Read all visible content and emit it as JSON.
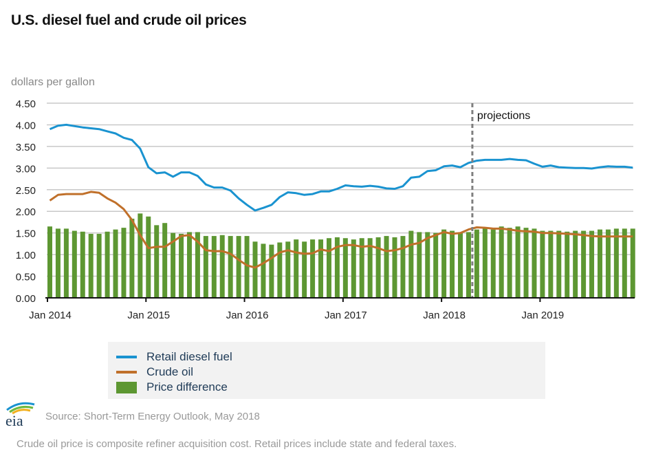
{
  "title": "U.S. diesel fuel and crude oil prices",
  "units_label": "dollars per gallon",
  "chart_data": {
    "type": "line+bar",
    "title": "U.S. diesel fuel and crude oil prices",
    "ylabel": "dollars per gallon",
    "ylim": [
      0,
      4.5
    ],
    "yticks": [
      "0.00",
      "0.50",
      "1.00",
      "1.50",
      "2.00",
      "2.50",
      "3.00",
      "3.50",
      "4.00",
      "4.50"
    ],
    "x_start": "Jan 2014",
    "x_end": "Dec 2019",
    "xtick_labels": [
      "Jan 2014",
      "Jan 2015",
      "Jan 2016",
      "Jan 2017",
      "Jan 2018",
      "Jan 2019"
    ],
    "projections_start_month_index": 51.5,
    "projections_label": "projections",
    "grid": true,
    "legend_placement": "bottom",
    "series": [
      {
        "name": "Retail diesel fuel",
        "kind": "line",
        "color": "#1a93d0",
        "values": [
          3.9,
          3.98,
          4.0,
          3.97,
          3.94,
          3.92,
          3.9,
          3.85,
          3.8,
          3.7,
          3.65,
          3.45,
          3.02,
          2.88,
          2.9,
          2.8,
          2.9,
          2.9,
          2.82,
          2.62,
          2.55,
          2.55,
          2.48,
          2.3,
          2.15,
          2.02,
          2.08,
          2.15,
          2.33,
          2.44,
          2.42,
          2.38,
          2.4,
          2.46,
          2.46,
          2.52,
          2.6,
          2.58,
          2.57,
          2.59,
          2.57,
          2.53,
          2.52,
          2.58,
          2.78,
          2.8,
          2.93,
          2.95,
          3.04,
          3.06,
          3.02,
          3.12,
          3.17,
          3.19,
          3.19,
          3.19,
          3.21,
          3.19,
          3.18,
          3.1,
          3.03,
          3.06,
          3.02,
          3.01,
          3.0,
          3.0,
          2.99,
          3.02,
          3.04,
          3.03,
          3.03,
          3.01
        ]
      },
      {
        "name": "Crude oil",
        "kind": "line",
        "color": "#c0702a",
        "values": [
          2.25,
          2.38,
          2.4,
          2.4,
          2.4,
          2.45,
          2.43,
          2.3,
          2.2,
          2.05,
          1.8,
          1.45,
          1.15,
          1.18,
          1.18,
          1.3,
          1.43,
          1.45,
          1.3,
          1.1,
          1.08,
          1.08,
          1.02,
          0.88,
          0.75,
          0.7,
          0.8,
          0.92,
          1.05,
          1.1,
          1.05,
          1.02,
          1.03,
          1.12,
          1.08,
          1.18,
          1.22,
          1.22,
          1.18,
          1.2,
          1.15,
          1.08,
          1.1,
          1.15,
          1.23,
          1.27,
          1.38,
          1.45,
          1.52,
          1.48,
          1.5,
          1.58,
          1.63,
          1.62,
          1.6,
          1.6,
          1.58,
          1.55,
          1.54,
          1.53,
          1.5,
          1.5,
          1.49,
          1.48,
          1.47,
          1.45,
          1.43,
          1.42,
          1.42,
          1.42,
          1.42,
          1.42
        ]
      },
      {
        "name": "Price difference",
        "kind": "bar",
        "color": "#5d9732",
        "values": [
          1.65,
          1.6,
          1.6,
          1.55,
          1.53,
          1.48,
          1.48,
          1.53,
          1.58,
          1.62,
          1.83,
          1.95,
          1.88,
          1.68,
          1.73,
          1.5,
          1.48,
          1.52,
          1.52,
          1.43,
          1.43,
          1.45,
          1.43,
          1.43,
          1.43,
          1.3,
          1.25,
          1.23,
          1.28,
          1.3,
          1.35,
          1.3,
          1.35,
          1.35,
          1.38,
          1.4,
          1.38,
          1.35,
          1.38,
          1.38,
          1.4,
          1.43,
          1.4,
          1.43,
          1.55,
          1.52,
          1.52,
          1.5,
          1.58,
          1.55,
          1.5,
          1.52,
          1.58,
          1.6,
          1.58,
          1.65,
          1.62,
          1.65,
          1.62,
          1.6,
          1.55,
          1.55,
          1.55,
          1.53,
          1.55,
          1.55,
          1.55,
          1.58,
          1.58,
          1.6,
          1.6,
          1.6
        ]
      }
    ]
  },
  "legend": [
    "Retail diesel fuel",
    "Crude oil",
    "Price difference"
  ],
  "source": "Source: Short-Term Energy Outlook, May 2018",
  "note": "Crude oil price is composite refiner acquisition cost. Retail prices include state and federal taxes.",
  "logo_text": "eia"
}
